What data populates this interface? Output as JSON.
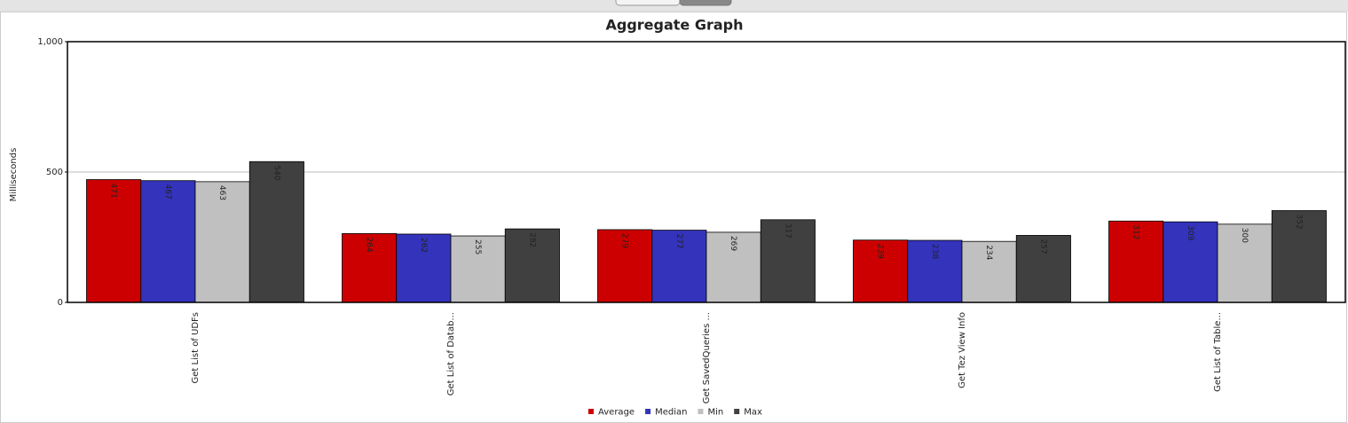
{
  "chart_data": {
    "type": "bar",
    "title": "Aggregate Graph",
    "y_label": "Milliseconds",
    "categories": [
      "Get List of UDFs",
      "Get List of Datab...",
      "Get SavedQueries ...",
      "Get Tez View Info",
      "Get List of Table..."
    ],
    "series": [
      {
        "name": "Average",
        "color": "#cc0000",
        "values": [
          471,
          264,
          279,
          239,
          312
        ]
      },
      {
        "name": "Median",
        "color": "#3333bb",
        "values": [
          467,
          262,
          277,
          238,
          309
        ]
      },
      {
        "name": "Min",
        "color": "#c0c0c0",
        "values": [
          463,
          255,
          269,
          234,
          300
        ]
      },
      {
        "name": "Max",
        "color": "#404040",
        "values": [
          540,
          282,
          317,
          257,
          352
        ]
      }
    ],
    "ylim": [
      0,
      1000
    ],
    "yticks": [
      0,
      500,
      {
        "value": 1000,
        "label": "1,000"
      }
    ],
    "grid": true,
    "legend": "bottom"
  }
}
